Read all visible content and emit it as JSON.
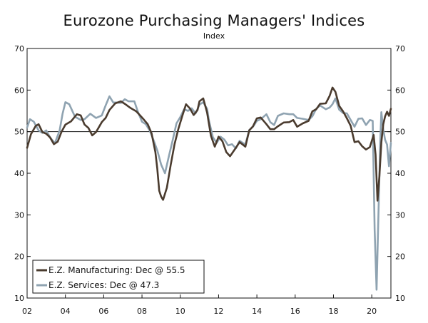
{
  "chart_data": {
    "type": "line",
    "title": "Eurozone Purchasing Managers' Indices",
    "subtitle": "Index",
    "xlabel": "",
    "ylabel": "",
    "xlim": [
      2002.0,
      2021.0
    ],
    "ylim": [
      10,
      70
    ],
    "y_ticks": [
      "10",
      "20",
      "30",
      "40",
      "50",
      "60",
      "70"
    ],
    "x_ticks": [
      {
        "label": "02",
        "year": 2002
      },
      {
        "label": "04",
        "year": 2004
      },
      {
        "label": "06",
        "year": 2006
      },
      {
        "label": "08",
        "year": 2008
      },
      {
        "label": "10",
        "year": 2010
      },
      {
        "label": "12",
        "year": 2012
      },
      {
        "label": "14",
        "year": 2014
      },
      {
        "label": "16",
        "year": 2016
      },
      {
        "label": "18",
        "year": 2018
      },
      {
        "label": "20",
        "year": 2020
      }
    ],
    "reference_line": 50,
    "legend_position": "bottom-left",
    "series": [
      {
        "name": "E.Z. Manufacturing",
        "legend_label": "E.Z. Manufacturing: Dec @ 55.5",
        "color": "#4a3b2e",
        "points": [
          [
            2002.0,
            46.1
          ],
          [
            2002.2,
            49.4
          ],
          [
            2002.45,
            51.4
          ],
          [
            2002.6,
            51.8
          ],
          [
            2002.8,
            49.9
          ],
          [
            2003.0,
            49.5
          ],
          [
            2003.2,
            48.6
          ],
          [
            2003.4,
            47.0
          ],
          [
            2003.6,
            47.6
          ],
          [
            2003.8,
            50.0
          ],
          [
            2004.0,
            51.7
          ],
          [
            2004.3,
            52.5
          ],
          [
            2004.6,
            54.2
          ],
          [
            2004.8,
            53.9
          ],
          [
            2005.0,
            51.7
          ],
          [
            2005.2,
            50.9
          ],
          [
            2005.4,
            49.1
          ],
          [
            2005.6,
            49.9
          ],
          [
            2005.9,
            52.3
          ],
          [
            2006.1,
            53.3
          ],
          [
            2006.3,
            55.2
          ],
          [
            2006.6,
            56.8
          ],
          [
            2006.9,
            57.3
          ],
          [
            2007.1,
            56.7
          ],
          [
            2007.4,
            55.7
          ],
          [
            2007.7,
            54.9
          ],
          [
            2007.9,
            53.9
          ],
          [
            2008.1,
            52.9
          ],
          [
            2008.3,
            51.8
          ],
          [
            2008.5,
            49.6
          ],
          [
            2008.7,
            45.1
          ],
          [
            2008.8,
            41.1
          ],
          [
            2008.9,
            35.8
          ],
          [
            2009.0,
            34.4
          ],
          [
            2009.1,
            33.6
          ],
          [
            2009.3,
            36.5
          ],
          [
            2009.5,
            42.0
          ],
          [
            2009.7,
            47.0
          ],
          [
            2009.9,
            50.7
          ],
          [
            2010.1,
            53.7
          ],
          [
            2010.3,
            56.6
          ],
          [
            2010.5,
            55.6
          ],
          [
            2010.7,
            54.0
          ],
          [
            2010.9,
            55.2
          ],
          [
            2011.0,
            57.3
          ],
          [
            2011.2,
            58.0
          ],
          [
            2011.4,
            54.6
          ],
          [
            2011.6,
            49.0
          ],
          [
            2011.8,
            46.4
          ],
          [
            2012.0,
            48.8
          ],
          [
            2012.2,
            47.7
          ],
          [
            2012.4,
            45.1
          ],
          [
            2012.6,
            44.1
          ],
          [
            2012.9,
            46.1
          ],
          [
            2013.1,
            47.5
          ],
          [
            2013.4,
            46.4
          ],
          [
            2013.6,
            50.3
          ],
          [
            2013.8,
            51.3
          ],
          [
            2014.0,
            53.2
          ],
          [
            2014.2,
            53.4
          ],
          [
            2014.5,
            51.8
          ],
          [
            2014.7,
            50.6
          ],
          [
            2014.9,
            50.6
          ],
          [
            2015.1,
            51.3
          ],
          [
            2015.4,
            52.2
          ],
          [
            2015.7,
            52.3
          ],
          [
            2015.9,
            52.8
          ],
          [
            2016.1,
            51.2
          ],
          [
            2016.4,
            52.0
          ],
          [
            2016.7,
            52.6
          ],
          [
            2016.9,
            54.9
          ],
          [
            2017.1,
            55.4
          ],
          [
            2017.3,
            56.7
          ],
          [
            2017.6,
            56.8
          ],
          [
            2017.8,
            58.6
          ],
          [
            2017.95,
            60.6
          ],
          [
            2018.1,
            59.6
          ],
          [
            2018.3,
            56.2
          ],
          [
            2018.5,
            54.9
          ],
          [
            2018.7,
            53.2
          ],
          [
            2018.9,
            51.4
          ],
          [
            2019.1,
            47.5
          ],
          [
            2019.3,
            47.7
          ],
          [
            2019.5,
            46.5
          ],
          [
            2019.7,
            45.7
          ],
          [
            2019.9,
            46.3
          ],
          [
            2020.1,
            49.2
          ],
          [
            2020.2,
            44.5
          ],
          [
            2020.3,
            33.4
          ],
          [
            2020.4,
            39.4
          ],
          [
            2020.5,
            47.4
          ],
          [
            2020.6,
            51.8
          ],
          [
            2020.7,
            53.7
          ],
          [
            2020.8,
            54.8
          ],
          [
            2020.9,
            53.8
          ],
          [
            2021.0,
            55.5
          ]
        ]
      },
      {
        "name": "E.Z. Services",
        "legend_label": "E.Z. Services: Dec @ 47.3",
        "color": "#8fa3b1",
        "points": [
          [
            2002.0,
            51.0
          ],
          [
            2002.15,
            53.0
          ],
          [
            2002.35,
            52.4
          ],
          [
            2002.6,
            50.3
          ],
          [
            2002.8,
            49.7
          ],
          [
            2003.0,
            50.3
          ],
          [
            2003.2,
            48.6
          ],
          [
            2003.45,
            47.2
          ],
          [
            2003.7,
            50.3
          ],
          [
            2003.85,
            54.3
          ],
          [
            2004.0,
            57.1
          ],
          [
            2004.2,
            56.6
          ],
          [
            2004.5,
            53.6
          ],
          [
            2004.8,
            52.8
          ],
          [
            2005.0,
            53.0
          ],
          [
            2005.3,
            54.3
          ],
          [
            2005.6,
            53.3
          ],
          [
            2005.9,
            53.9
          ],
          [
            2006.1,
            56.3
          ],
          [
            2006.3,
            58.5
          ],
          [
            2006.5,
            57.0
          ],
          [
            2006.7,
            57.0
          ],
          [
            2006.9,
            56.9
          ],
          [
            2007.1,
            57.8
          ],
          [
            2007.3,
            57.3
          ],
          [
            2007.6,
            57.3
          ],
          [
            2007.8,
            54.6
          ],
          [
            2008.0,
            52.4
          ],
          [
            2008.2,
            51.8
          ],
          [
            2008.4,
            50.3
          ],
          [
            2008.6,
            48.0
          ],
          [
            2008.8,
            45.5
          ],
          [
            2009.0,
            42.1
          ],
          [
            2009.2,
            40.0
          ],
          [
            2009.4,
            44.0
          ],
          [
            2009.6,
            47.9
          ],
          [
            2009.8,
            52.0
          ],
          [
            2010.0,
            53.5
          ],
          [
            2010.2,
            55.4
          ],
          [
            2010.4,
            55.0
          ],
          [
            2010.6,
            55.6
          ],
          [
            2010.8,
            54.4
          ],
          [
            2011.0,
            56.5
          ],
          [
            2011.2,
            57.1
          ],
          [
            2011.4,
            55.5
          ],
          [
            2011.5,
            52.6
          ],
          [
            2011.7,
            48.7
          ],
          [
            2011.9,
            47.3
          ],
          [
            2012.1,
            48.8
          ],
          [
            2012.3,
            48.1
          ],
          [
            2012.5,
            46.7
          ],
          [
            2012.7,
            47.0
          ],
          [
            2012.9,
            46.0
          ],
          [
            2013.1,
            47.8
          ],
          [
            2013.4,
            46.9
          ],
          [
            2013.6,
            50.4
          ],
          [
            2013.8,
            51.2
          ],
          [
            2014.0,
            52.6
          ],
          [
            2014.2,
            53.0
          ],
          [
            2014.5,
            54.2
          ],
          [
            2014.7,
            52.3
          ],
          [
            2014.9,
            51.6
          ],
          [
            2015.1,
            53.8
          ],
          [
            2015.4,
            54.4
          ],
          [
            2015.7,
            54.2
          ],
          [
            2015.9,
            54.2
          ],
          [
            2016.1,
            53.3
          ],
          [
            2016.4,
            53.1
          ],
          [
            2016.7,
            52.8
          ],
          [
            2016.9,
            53.7
          ],
          [
            2017.1,
            55.5
          ],
          [
            2017.3,
            56.3
          ],
          [
            2017.6,
            55.4
          ],
          [
            2017.8,
            55.8
          ],
          [
            2017.95,
            56.6
          ],
          [
            2018.1,
            58.0
          ],
          [
            2018.3,
            55.3
          ],
          [
            2018.5,
            54.5
          ],
          [
            2018.7,
            54.4
          ],
          [
            2018.9,
            52.8
          ],
          [
            2019.1,
            51.2
          ],
          [
            2019.3,
            53.1
          ],
          [
            2019.5,
            53.2
          ],
          [
            2019.7,
            51.6
          ],
          [
            2019.9,
            52.8
          ],
          [
            2020.05,
            52.6
          ],
          [
            2020.15,
            26.4
          ],
          [
            2020.25,
            12.0
          ],
          [
            2020.35,
            30.5
          ],
          [
            2020.45,
            48.3
          ],
          [
            2020.5,
            54.7
          ],
          [
            2020.6,
            50.5
          ],
          [
            2020.7,
            48.0
          ],
          [
            2020.8,
            46.9
          ],
          [
            2020.9,
            41.7
          ],
          [
            2021.0,
            47.3
          ]
        ]
      }
    ]
  }
}
